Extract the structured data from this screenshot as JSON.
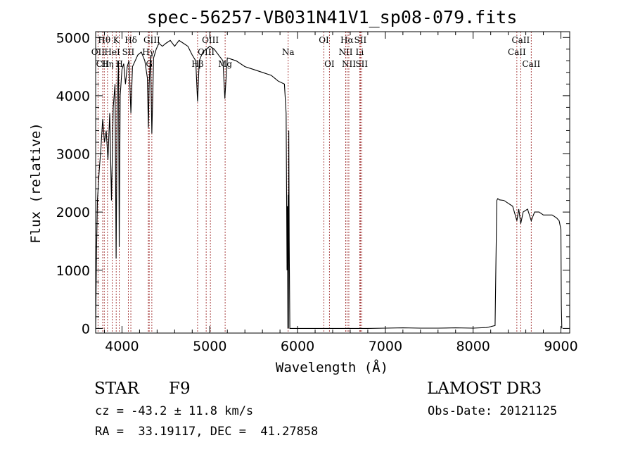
{
  "chart_data": {
    "type": "line",
    "title": "spec-56257-VB031N41V1_sp08-079.fits",
    "xlabel": "Wavelength (Å)",
    "ylabel": "Flux (relative)",
    "xlim": [
      3700,
      9100
    ],
    "ylim": [
      -80,
      5100
    ],
    "xticks": [
      4000,
      5000,
      6000,
      7000,
      8000,
      9000
    ],
    "xtick_labels": [
      "4000",
      "5000",
      "6000",
      "7000",
      "8000",
      "9000"
    ],
    "yticks": [
      0,
      1000,
      2000,
      3000,
      4000,
      5000
    ],
    "ytick_labels": [
      "0",
      "1000",
      "2000",
      "3000",
      "4000",
      "5000"
    ],
    "grid": false,
    "series": [
      {
        "name": "flux",
        "x": [
          3700,
          3710,
          3720,
          3740,
          3760,
          3780,
          3800,
          3820,
          3840,
          3860,
          3880,
          3900,
          3920,
          3933,
          3945,
          3960,
          3968,
          3980,
          4000,
          4020,
          4040,
          4060,
          4080,
          4101,
          4120,
          4150,
          4180,
          4220,
          4260,
          4290,
          4300,
          4310,
          4325,
          4340,
          4360,
          4390,
          4420,
          4460,
          4500,
          4550,
          4600,
          4650,
          4700,
          4750,
          4800,
          4840,
          4861,
          4880,
          4920,
          4960,
          5000,
          5050,
          5100,
          5150,
          5172,
          5200,
          5300,
          5400,
          5500,
          5600,
          5700,
          5780,
          5850,
          5870,
          5880,
          5885,
          5890,
          5893,
          5896,
          5900,
          5905,
          5912,
          5925,
          5950,
          6000,
          6200,
          6500,
          6800,
          7000,
          7200,
          7400,
          7600,
          7800,
          8000,
          8150,
          8200,
          8250,
          8260,
          8270,
          8280,
          8300,
          8350,
          8400,
          8450,
          8498,
          8520,
          8542,
          8570,
          8620,
          8662,
          8700,
          8750,
          8800,
          8850,
          8900,
          8950,
          8980,
          9000,
          9005,
          9010
        ],
        "values": [
          0,
          1300,
          2200,
          2700,
          3100,
          3600,
          3200,
          3400,
          2900,
          3700,
          2200,
          3800,
          4200,
          1200,
          3800,
          4600,
          1400,
          4000,
          4450,
          4550,
          4200,
          4500,
          4600,
          3700,
          4500,
          4600,
          4700,
          4750,
          4600,
          4300,
          3450,
          4200,
          4700,
          3350,
          4650,
          4800,
          4900,
          4850,
          4900,
          4950,
          4850,
          4950,
          4900,
          4850,
          4700,
          4600,
          3900,
          4600,
          4750,
          4800,
          4850,
          4800,
          4700,
          4600,
          3950,
          4650,
          4600,
          4500,
          4450,
          4400,
          4350,
          4250,
          4200,
          3700,
          1000,
          2100,
          0,
          2300,
          0,
          3400,
          1500,
          0,
          0,
          0,
          0,
          0,
          0,
          0,
          5,
          10,
          5,
          5,
          10,
          5,
          15,
          30,
          50,
          1200,
          2200,
          2230,
          2210,
          2200,
          2150,
          2100,
          1850,
          2050,
          1800,
          2000,
          2050,
          1850,
          2000,
          2000,
          1950,
          1950,
          1950,
          1900,
          1850,
          1700,
          400,
          0
        ]
      }
    ],
    "spectral_lines": [
      {
        "label": "Hθ",
        "x": 3798,
        "row": 1
      },
      {
        "label": "OII",
        "x": 3727,
        "row": 2
      },
      {
        "label": "Hη",
        "x": 3835,
        "row": 3
      },
      {
        "label": "CII",
        "x": 3780,
        "row": 3
      },
      {
        "label": "K",
        "x": 3934,
        "row": 1
      },
      {
        "label": "HeI",
        "x": 3889,
        "row": 2
      },
      {
        "label": "SII",
        "x": 4072,
        "row": 2
      },
      {
        "label": "Hδ",
        "x": 4101,
        "row": 1
      },
      {
        "label": "H",
        "x": 3969,
        "row": 3
      },
      {
        "label": "GIII",
        "x": 4340,
        "row": 1
      },
      {
        "label": "Hγ",
        "x": 4300,
        "row": 2
      },
      {
        "label": "G",
        "x": 4310,
        "row": 3
      },
      {
        "label": "OIII",
        "x": 5007,
        "row": 1
      },
      {
        "label": "OIII",
        "x": 4959,
        "row": 2
      },
      {
        "label": "Hβ",
        "x": 4861,
        "row": 3
      },
      {
        "label": "Mg",
        "x": 5175,
        "row": 3
      },
      {
        "label": "Na",
        "x": 5893,
        "row": 2
      },
      {
        "label": "OI",
        "x": 6300,
        "row": 1
      },
      {
        "label": "OI",
        "x": 6363,
        "row": 3
      },
      {
        "label": "Hα",
        "x": 6563,
        "row": 1
      },
      {
        "label": "SII",
        "x": 6716,
        "row": 1
      },
      {
        "label": "NII",
        "x": 6548,
        "row": 2
      },
      {
        "label": "Li",
        "x": 6708,
        "row": 2
      },
      {
        "label": "NII",
        "x": 6584,
        "row": 3
      },
      {
        "label": "SII",
        "x": 6731,
        "row": 3
      },
      {
        "label": "CaII",
        "x": 8542,
        "row": 1
      },
      {
        "label": "CaII",
        "x": 8498,
        "row": 2
      },
      {
        "label": "CaII",
        "x": 8662,
        "row": 3
      }
    ]
  },
  "info": {
    "class_label": "STAR",
    "subclass": "F9",
    "survey": "LAMOST DR3",
    "redshift_text": "cz = -43.2 ± 11.8 km/s",
    "obs_date": "Obs-Date: 20121125",
    "coords": "RA =  33.19117, DEC =  41.27858"
  }
}
